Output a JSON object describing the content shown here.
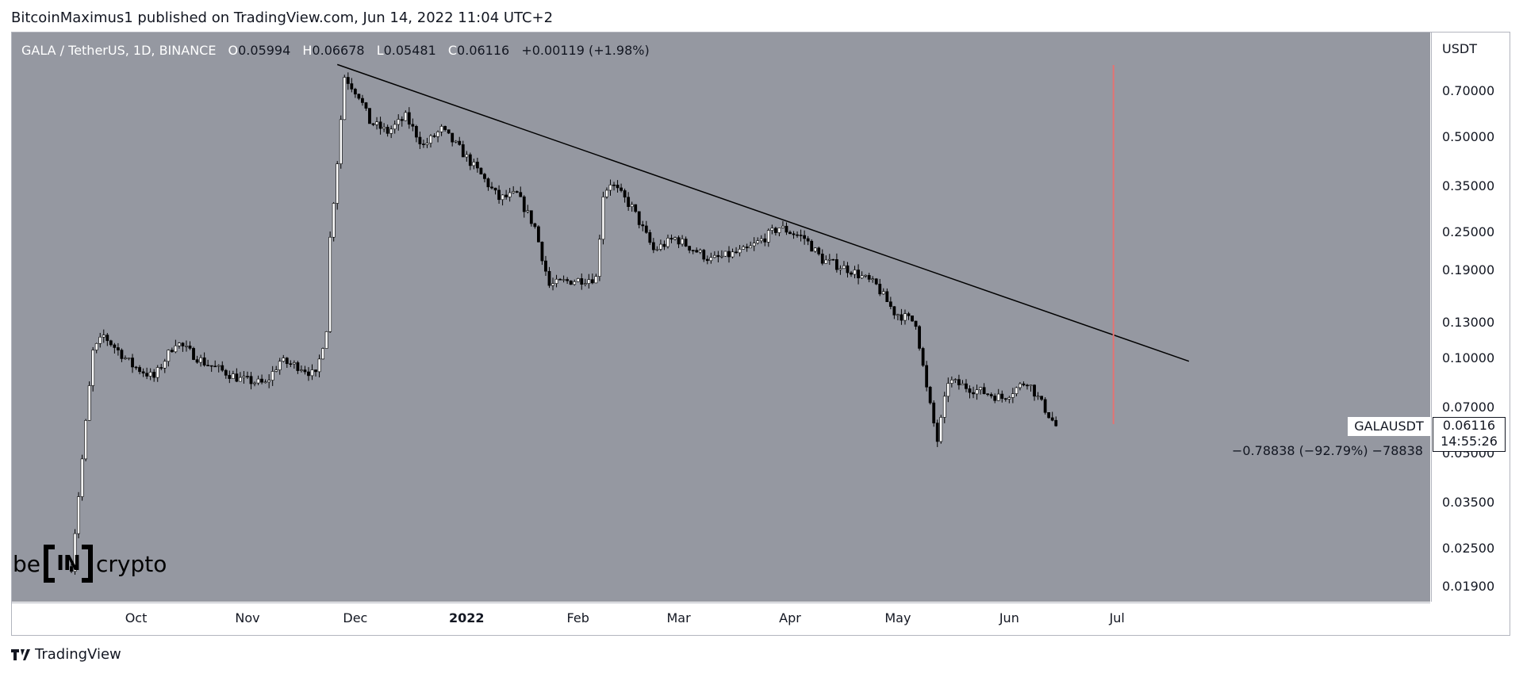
{
  "header": {
    "publisher_line": "BitcoinMaximus1 published on TradingView.com, Jun 14, 2022 11:04 UTC+2"
  },
  "footer": {
    "brand": "TradingView"
  },
  "watermark": {
    "left": "be",
    "box": "IN",
    "right": "crypto"
  },
  "legend": {
    "symbol": "GALA / TetherUS, 1D, BINANCE",
    "open_label": "O",
    "open": "0.05994",
    "high_label": "H",
    "high": "0.06678",
    "low_label": "L",
    "low": "0.05481",
    "close_label": "C",
    "close": "0.06116",
    "change": "+0.00119 (+1.98%)"
  },
  "price_axis": {
    "unit": "USDT",
    "ticks": [
      "0.70000",
      "0.50000",
      "0.35000",
      "0.25000",
      "0.19000",
      "0.13000",
      "0.10000",
      "0.07000",
      "0.05000",
      "0.03500",
      "0.02500",
      "0.01900"
    ]
  },
  "time_axis": {
    "ticks": [
      {
        "label": "Oct",
        "bold": false
      },
      {
        "label": "Nov",
        "bold": false
      },
      {
        "label": "Dec",
        "bold": false
      },
      {
        "label": "2022",
        "bold": true
      },
      {
        "label": "Feb",
        "bold": false
      },
      {
        "label": "Mar",
        "bold": false
      },
      {
        "label": "Apr",
        "bold": false
      },
      {
        "label": "May",
        "bold": false
      },
      {
        "label": "Jun",
        "bold": false
      },
      {
        "label": "Jul",
        "bold": false
      }
    ]
  },
  "symbol_label": "GALAUSDT",
  "last_price": "0.06116",
  "countdown": "14:55:26",
  "measure": "−0.78838 (−92.79%) −78838",
  "colors": {
    "plot_bg": "#9598a1",
    "candle_up": "#ffffff",
    "candle_down": "#000000",
    "trendline": "#000000",
    "vertical_marker": "#e57373"
  },
  "chart_data": {
    "type": "candlestick",
    "title": "",
    "symbol": "GALA / TetherUS, 1D, BINANCE",
    "scale": "log",
    "ylim": [
      0.016,
      1.0
    ],
    "date_range": [
      "2021-09-13",
      "2022-06-14"
    ],
    "grid": false,
    "annotations": [
      {
        "type": "descending-trendline",
        "from": {
          "date": "2021-11-26",
          "price": 0.85
        },
        "to": {
          "date": "2022-07-21",
          "price": 0.098
        }
      },
      {
        "type": "vertical-marker",
        "date": "2022-06-30"
      },
      {
        "type": "measure",
        "text": "−0.78838 (−92.79%) −78838"
      }
    ],
    "close_path": [
      {
        "date": "2021-09-13",
        "price": 0.022
      },
      {
        "date": "2021-09-16",
        "price": 0.048
      },
      {
        "date": "2021-09-19",
        "price": 0.105
      },
      {
        "date": "2021-09-22",
        "price": 0.118
      },
      {
        "date": "2021-09-30",
        "price": 0.095
      },
      {
        "date": "2021-10-06",
        "price": 0.087
      },
      {
        "date": "2021-10-12",
        "price": 0.113
      },
      {
        "date": "2021-10-20",
        "price": 0.097
      },
      {
        "date": "2021-10-30",
        "price": 0.086
      },
      {
        "date": "2021-11-06",
        "price": 0.083
      },
      {
        "date": "2021-11-10",
        "price": 0.098
      },
      {
        "date": "2021-11-16",
        "price": 0.094
      },
      {
        "date": "2021-11-20",
        "price": 0.088
      },
      {
        "date": "2021-11-23",
        "price": 0.125
      },
      {
        "date": "2021-11-24",
        "price": 0.24
      },
      {
        "date": "2021-11-26",
        "price": 0.42
      },
      {
        "date": "2021-11-28",
        "price": 0.78
      },
      {
        "date": "2021-12-02",
        "price": 0.68
      },
      {
        "date": "2021-12-05",
        "price": 0.56
      },
      {
        "date": "2021-12-10",
        "price": 0.52
      },
      {
        "date": "2021-12-15",
        "price": 0.58
      },
      {
        "date": "2021-12-20",
        "price": 0.47
      },
      {
        "date": "2021-12-25",
        "price": 0.53
      },
      {
        "date": "2021-12-30",
        "price": 0.46
      },
      {
        "date": "2022-01-05",
        "price": 0.38
      },
      {
        "date": "2022-01-10",
        "price": 0.32
      },
      {
        "date": "2022-01-15",
        "price": 0.33
      },
      {
        "date": "2022-01-20",
        "price": 0.26
      },
      {
        "date": "2022-01-24",
        "price": 0.17
      },
      {
        "date": "2022-01-28",
        "price": 0.175
      },
      {
        "date": "2022-02-06",
        "price": 0.18
      },
      {
        "date": "2022-02-08",
        "price": 0.33
      },
      {
        "date": "2022-02-10",
        "price": 0.36
      },
      {
        "date": "2022-02-16",
        "price": 0.3
      },
      {
        "date": "2022-02-22",
        "price": 0.22
      },
      {
        "date": "2022-02-28",
        "price": 0.24
      },
      {
        "date": "2022-03-10",
        "price": 0.205
      },
      {
        "date": "2022-03-20",
        "price": 0.22
      },
      {
        "date": "2022-03-29",
        "price": 0.26
      },
      {
        "date": "2022-04-05",
        "price": 0.24
      },
      {
        "date": "2022-04-10",
        "price": 0.205
      },
      {
        "date": "2022-04-18",
        "price": 0.19
      },
      {
        "date": "2022-04-25",
        "price": 0.17
      },
      {
        "date": "2022-04-30",
        "price": 0.14
      },
      {
        "date": "2022-05-06",
        "price": 0.13
      },
      {
        "date": "2022-05-09",
        "price": 0.08
      },
      {
        "date": "2022-05-12",
        "price": 0.055
      },
      {
        "date": "2022-05-15",
        "price": 0.085
      },
      {
        "date": "2022-05-22",
        "price": 0.08
      },
      {
        "date": "2022-05-30",
        "price": 0.075
      },
      {
        "date": "2022-06-06",
        "price": 0.085
      },
      {
        "date": "2022-06-10",
        "price": 0.072
      },
      {
        "date": "2022-06-14",
        "price": 0.06116
      }
    ]
  }
}
